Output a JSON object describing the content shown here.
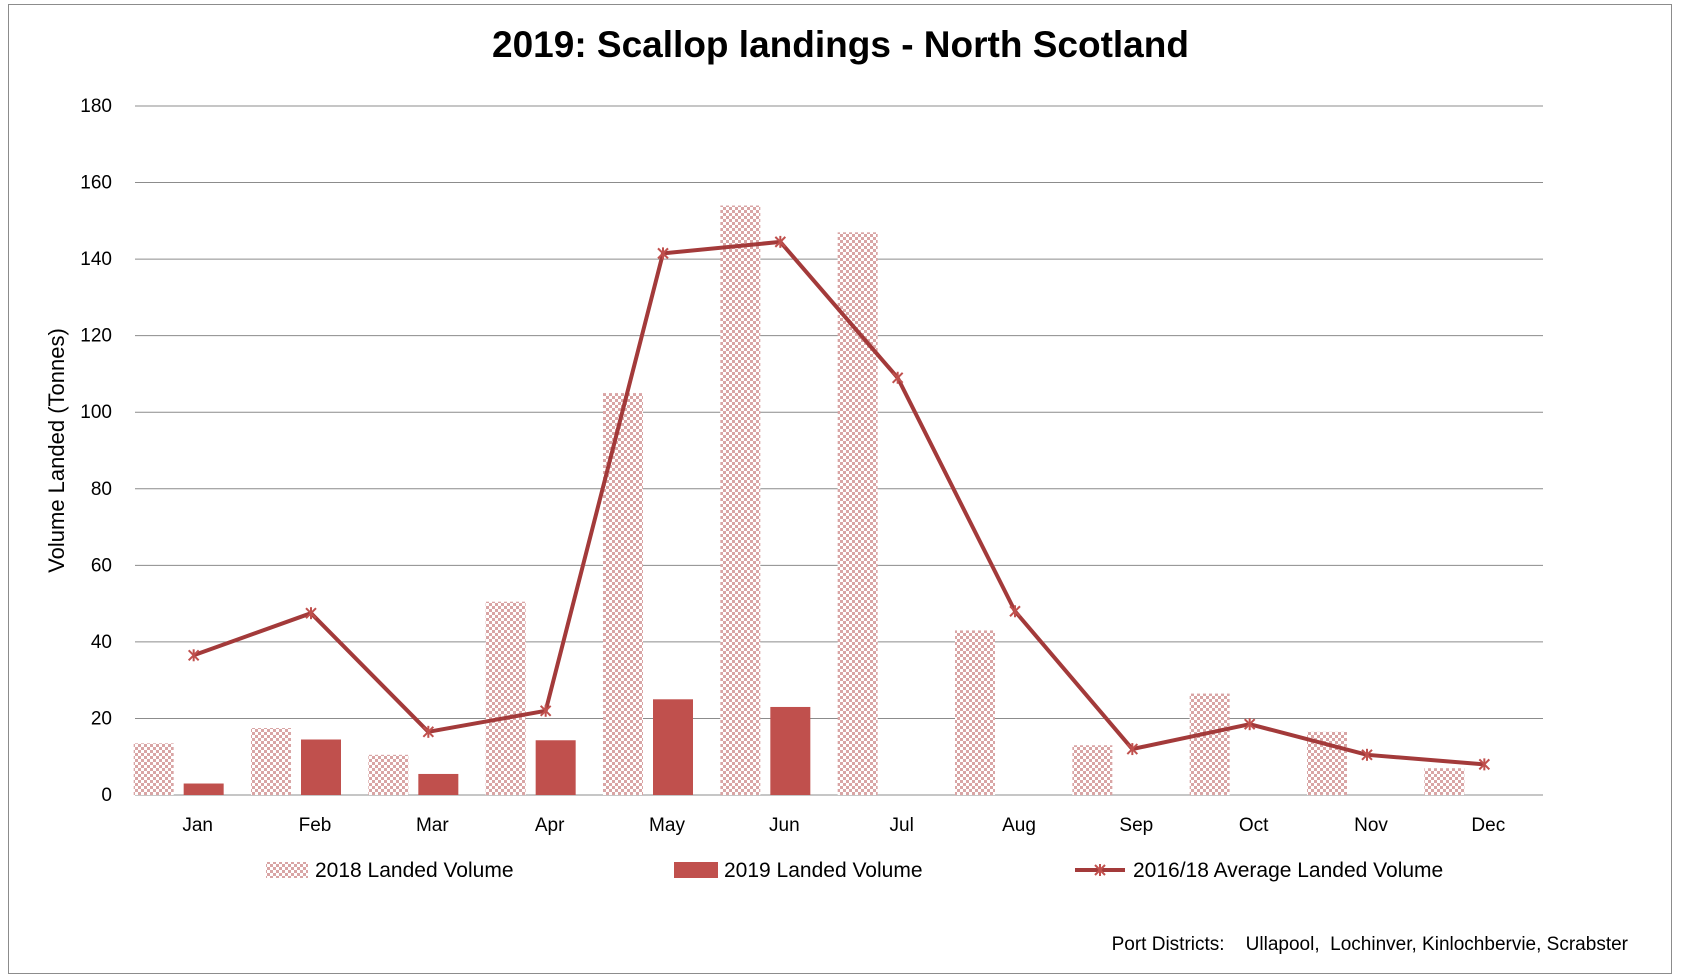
{
  "chart_data": {
    "type": "bar",
    "title": "2019: Scallop landings - North Scotland",
    "xlabel": "",
    "ylabel": "Volume Landed (Tonnes)",
    "ylim": [
      0,
      180
    ],
    "yticks": [
      0,
      20,
      40,
      60,
      80,
      100,
      120,
      140,
      160,
      180
    ],
    "grid": true,
    "legend": "bottom",
    "categories": [
      "Jan",
      "Feb",
      "Mar",
      "Apr",
      "May",
      "Jun",
      "Jul",
      "Aug",
      "Sep",
      "Oct",
      "Nov",
      "Dec"
    ],
    "series": [
      {
        "name": "2018  Landed Volume",
        "kind": "bar",
        "pattern": "checkered",
        "color": "#d9a5a5",
        "values": [
          13.5,
          17.5,
          10.5,
          50.5,
          105,
          154,
          147,
          43,
          13,
          26.5,
          16.5,
          7
        ]
      },
      {
        "name": "2019 Landed Volume",
        "kind": "bar",
        "color": "#c0504d",
        "values": [
          3,
          14.5,
          5.5,
          14.3,
          25,
          23,
          0,
          0,
          0,
          0,
          0,
          0
        ]
      },
      {
        "name": "2016/18 Average Landed Volume",
        "kind": "line",
        "marker": "asterisk",
        "color": "#a33a3a",
        "values": [
          36.5,
          47.5,
          16.5,
          22,
          141.5,
          144.5,
          109,
          48,
          12,
          18.5,
          10.5,
          8
        ]
      }
    ]
  },
  "footnote": "Port Districts:    Ullapool,  Lochinver, Kinlochbervie, Scrabster"
}
